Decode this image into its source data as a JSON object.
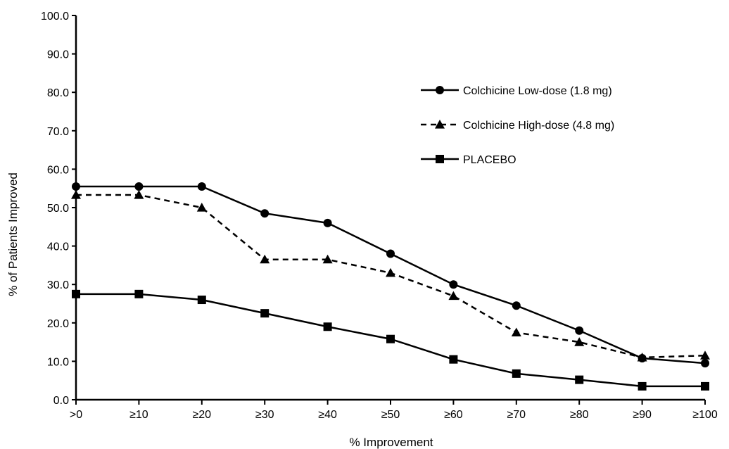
{
  "chart_data": {
    "type": "line",
    "title": "",
    "xlabel": "% Improvement",
    "ylabel": "% of Patients Improved",
    "categories": [
      ">0",
      "≥10",
      "≥20",
      "≥30",
      "≥40",
      "≥50",
      "≥60",
      "≥70",
      "≥80",
      "≥90",
      "≥100"
    ],
    "ylim": [
      0,
      100
    ],
    "yticks": [
      "0.0",
      "10.0",
      "20.0",
      "30.0",
      "40.0",
      "50.0",
      "60.0",
      "70.0",
      "80.0",
      "90.0",
      "100.0"
    ],
    "grid": false,
    "legend_position": "top-right",
    "series": [
      {
        "name": "Colchicine Low-dose (1.8 mg)",
        "style": "solid",
        "marker": "circle",
        "color": "#000000",
        "values": [
          55.5,
          55.5,
          55.5,
          48.5,
          46.0,
          38.0,
          30.0,
          24.5,
          18.0,
          10.8,
          9.5
        ]
      },
      {
        "name": "Colchicine High-dose (4.8 mg)",
        "style": "dashed",
        "marker": "triangle",
        "color": "#000000",
        "values": [
          53.3,
          53.3,
          50.0,
          36.5,
          36.5,
          33.0,
          27.0,
          17.5,
          15.0,
          11.0,
          11.5
        ]
      },
      {
        "name": "PLACEBO",
        "style": "solid",
        "marker": "square",
        "color": "#000000",
        "values": [
          27.5,
          27.5,
          26.0,
          22.5,
          19.0,
          15.8,
          10.5,
          6.8,
          5.2,
          3.5,
          3.5
        ]
      }
    ]
  }
}
